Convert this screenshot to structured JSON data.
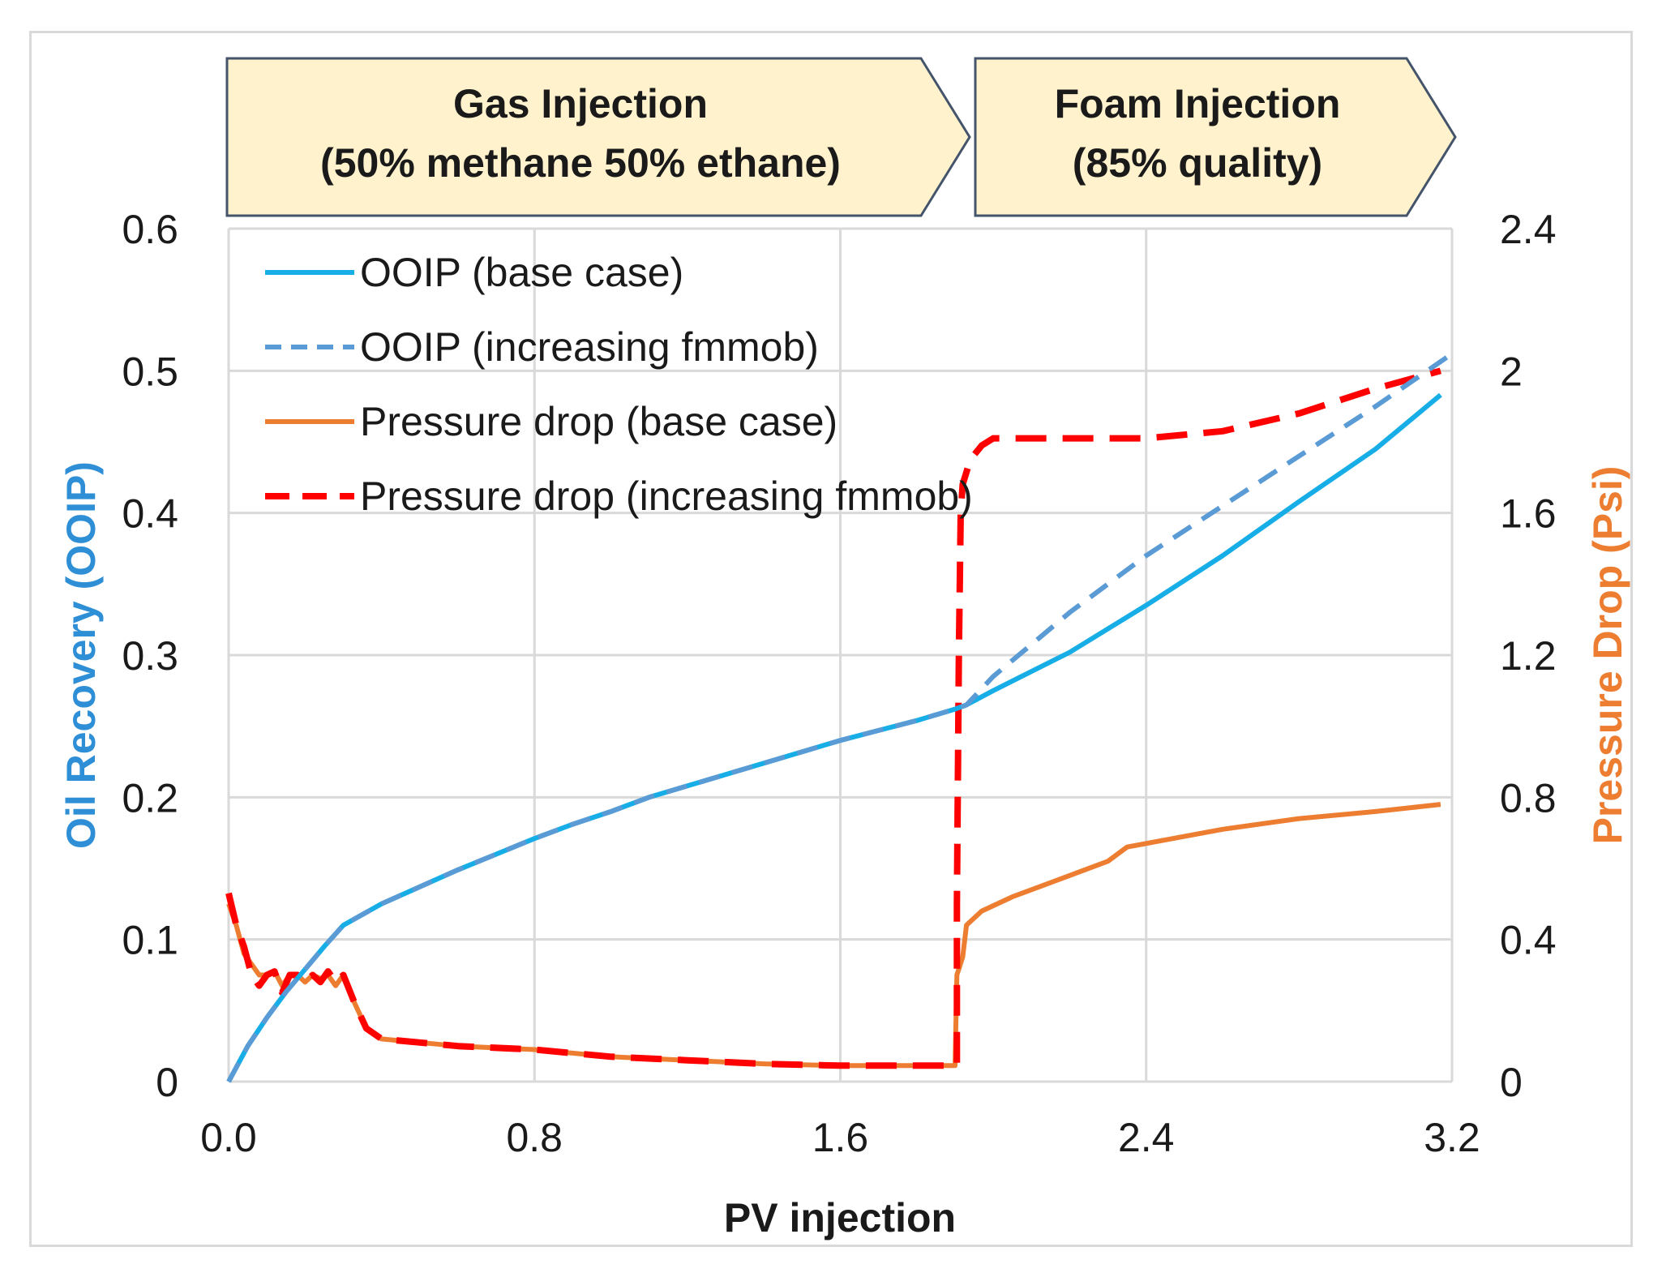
{
  "chart_data": {
    "type": "line",
    "xlabel": "PV injection",
    "ylabel_left": "Oil Recovery (OOIP)",
    "ylabel_right": "Pressure Drop (Psi)",
    "xlim": [
      0,
      3.2
    ],
    "ylim_left": [
      0,
      0.6
    ],
    "ylim_right": [
      0,
      2.4
    ],
    "x_ticks": [
      "0.0",
      "0.8",
      "1.6",
      "2.4",
      "3.2"
    ],
    "y_left_ticks": [
      "0",
      "0.1",
      "0.2",
      "0.3",
      "0.4",
      "0.5",
      "0.6"
    ],
    "y_right_ticks": [
      "0",
      "0.4",
      "0.8",
      "1.2",
      "1.6",
      "2",
      "2.4"
    ],
    "grid": true,
    "legend_position": "top-left",
    "phases": [
      {
        "label_line1": "Gas Injection",
        "label_line2": "(50% methane 50% ethane)",
        "x_start": 0,
        "x_end": 1.93
      },
      {
        "label_line1": "Foam Injection",
        "label_line2": "(85% quality)",
        "x_start": 1.94,
        "x_end": 3.2
      }
    ],
    "series": [
      {
        "name": "OOIP (base case)",
        "axis": "left",
        "color": "#17aee8",
        "dash": "solid",
        "points": [
          [
            0,
            0
          ],
          [
            0.05,
            0.025
          ],
          [
            0.1,
            0.045
          ],
          [
            0.15,
            0.063
          ],
          [
            0.2,
            0.079
          ],
          [
            0.25,
            0.095
          ],
          [
            0.3,
            0.11
          ],
          [
            0.4,
            0.125
          ],
          [
            0.5,
            0.137
          ],
          [
            0.6,
            0.149
          ],
          [
            0.7,
            0.16
          ],
          [
            0.8,
            0.171
          ],
          [
            0.9,
            0.181
          ],
          [
            1.0,
            0.19
          ],
          [
            1.1,
            0.2
          ],
          [
            1.2,
            0.208
          ],
          [
            1.3,
            0.216
          ],
          [
            1.4,
            0.224
          ],
          [
            1.5,
            0.232
          ],
          [
            1.6,
            0.24
          ],
          [
            1.7,
            0.247
          ],
          [
            1.8,
            0.254
          ],
          [
            1.9,
            0.262
          ],
          [
            1.93,
            0.265
          ],
          [
            2.0,
            0.275
          ],
          [
            2.2,
            0.302
          ],
          [
            2.4,
            0.335
          ],
          [
            2.6,
            0.37
          ],
          [
            2.8,
            0.408
          ],
          [
            3.0,
            0.445
          ],
          [
            3.17,
            0.483
          ]
        ]
      },
      {
        "name": "OOIP (increasing fmmob)",
        "axis": "left",
        "color": "#5b9bd5",
        "dash": "dashed",
        "points": [
          [
            0,
            0
          ],
          [
            0.05,
            0.025
          ],
          [
            0.1,
            0.045
          ],
          [
            0.15,
            0.063
          ],
          [
            0.2,
            0.079
          ],
          [
            0.25,
            0.095
          ],
          [
            0.3,
            0.11
          ],
          [
            0.4,
            0.125
          ],
          [
            0.5,
            0.137
          ],
          [
            0.6,
            0.149
          ],
          [
            0.7,
            0.16
          ],
          [
            0.8,
            0.171
          ],
          [
            0.9,
            0.181
          ],
          [
            1.0,
            0.19
          ],
          [
            1.1,
            0.2
          ],
          [
            1.2,
            0.208
          ],
          [
            1.3,
            0.216
          ],
          [
            1.4,
            0.224
          ],
          [
            1.5,
            0.232
          ],
          [
            1.6,
            0.24
          ],
          [
            1.7,
            0.247
          ],
          [
            1.8,
            0.254
          ],
          [
            1.9,
            0.262
          ],
          [
            1.93,
            0.265
          ],
          [
            2.0,
            0.285
          ],
          [
            2.2,
            0.33
          ],
          [
            2.4,
            0.37
          ],
          [
            2.6,
            0.405
          ],
          [
            2.8,
            0.44
          ],
          [
            3.0,
            0.475
          ],
          [
            3.2,
            0.512
          ]
        ]
      },
      {
        "name": "Pressure drop (base case)",
        "axis": "right",
        "color": "#ed7d31",
        "dash": "solid",
        "points": [
          [
            0,
            0.5
          ],
          [
            0.02,
            0.44
          ],
          [
            0.04,
            0.36
          ],
          [
            0.06,
            0.33
          ],
          [
            0.08,
            0.3
          ],
          [
            0.1,
            0.3
          ],
          [
            0.12,
            0.31
          ],
          [
            0.14,
            0.27
          ],
          [
            0.16,
            0.3
          ],
          [
            0.18,
            0.3
          ],
          [
            0.2,
            0.28
          ],
          [
            0.22,
            0.3
          ],
          [
            0.24,
            0.29
          ],
          [
            0.26,
            0.3
          ],
          [
            0.28,
            0.27
          ],
          [
            0.3,
            0.3
          ],
          [
            0.33,
            0.22
          ],
          [
            0.36,
            0.15
          ],
          [
            0.4,
            0.12
          ],
          [
            0.5,
            0.11
          ],
          [
            0.6,
            0.1
          ],
          [
            0.8,
            0.09
          ],
          [
            1.0,
            0.07
          ],
          [
            1.2,
            0.06
          ],
          [
            1.4,
            0.05
          ],
          [
            1.6,
            0.045
          ],
          [
            1.8,
            0.045
          ],
          [
            1.9,
            0.045
          ],
          [
            1.905,
            0.3
          ],
          [
            1.92,
            0.35
          ],
          [
            1.93,
            0.44
          ],
          [
            1.97,
            0.48
          ],
          [
            2.05,
            0.52
          ],
          [
            2.2,
            0.58
          ],
          [
            2.3,
            0.62
          ],
          [
            2.35,
            0.66
          ],
          [
            2.4,
            0.67
          ],
          [
            2.6,
            0.71
          ],
          [
            2.8,
            0.74
          ],
          [
            3.0,
            0.76
          ],
          [
            3.17,
            0.78
          ]
        ]
      },
      {
        "name": "Pressure drop (increasing fmmob)",
        "axis": "right",
        "color": "#ff0000",
        "dash": "dashed",
        "points": [
          [
            0,
            0.53
          ],
          [
            0.02,
            0.44
          ],
          [
            0.04,
            0.38
          ],
          [
            0.06,
            0.3
          ],
          [
            0.08,
            0.27
          ],
          [
            0.1,
            0.3
          ],
          [
            0.12,
            0.31
          ],
          [
            0.14,
            0.25
          ],
          [
            0.16,
            0.3
          ],
          [
            0.18,
            0.3
          ],
          [
            0.2,
            0.28
          ],
          [
            0.22,
            0.3
          ],
          [
            0.24,
            0.28
          ],
          [
            0.26,
            0.31
          ],
          [
            0.28,
            0.28
          ],
          [
            0.3,
            0.3
          ],
          [
            0.33,
            0.22
          ],
          [
            0.36,
            0.15
          ],
          [
            0.4,
            0.12
          ],
          [
            0.5,
            0.11
          ],
          [
            0.6,
            0.1
          ],
          [
            0.8,
            0.09
          ],
          [
            1.0,
            0.07
          ],
          [
            1.2,
            0.06
          ],
          [
            1.4,
            0.05
          ],
          [
            1.6,
            0.045
          ],
          [
            1.8,
            0.045
          ],
          [
            1.905,
            0.045
          ],
          [
            1.905,
            0.5
          ],
          [
            1.91,
            1.2
          ],
          [
            1.915,
            1.6
          ],
          [
            1.92,
            1.68
          ],
          [
            1.94,
            1.75
          ],
          [
            1.97,
            1.79
          ],
          [
            2.0,
            1.81
          ],
          [
            2.2,
            1.81
          ],
          [
            2.4,
            1.81
          ],
          [
            2.6,
            1.83
          ],
          [
            2.8,
            1.88
          ],
          [
            3.0,
            1.95
          ],
          [
            3.17,
            2.0
          ]
        ]
      }
    ]
  }
}
